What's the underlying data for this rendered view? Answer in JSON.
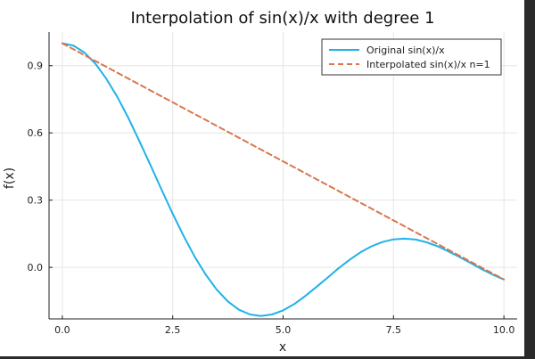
{
  "chart_data": {
    "type": "line",
    "title": "Interpolation of sin(x)/x with degree 1",
    "xlabel": "x",
    "ylabel": "f(x)",
    "xlim": [
      -0.3,
      10.3
    ],
    "ylim": [
      -0.23,
      1.05
    ],
    "xticks": [
      0,
      2.5,
      5,
      7.5,
      10
    ],
    "xtick_labels": [
      "0.0",
      "2.5",
      "5.0",
      "7.5",
      "10.0"
    ],
    "yticks": [
      0,
      0.3,
      0.6,
      0.9
    ],
    "ytick_labels": [
      "0.0",
      "0.3",
      "0.6",
      "0.9"
    ],
    "grid": true,
    "legend_position": "top-right",
    "series": [
      {
        "name": "Original sin(x)/x",
        "color": "#1fb2e8",
        "style": "solid",
        "x": [
          0,
          0.25,
          0.5,
          0.75,
          1.0,
          1.25,
          1.5,
          1.75,
          2.0,
          2.25,
          2.5,
          2.75,
          3.0,
          3.25,
          3.5,
          3.75,
          4.0,
          4.25,
          4.5,
          4.75,
          5.0,
          5.25,
          5.5,
          5.75,
          6.0,
          6.25,
          6.5,
          6.75,
          7.0,
          7.25,
          7.5,
          7.75,
          8.0,
          8.25,
          8.5,
          8.75,
          9.0,
          9.25,
          9.5,
          9.75,
          10.0
        ],
        "y": [
          1.0,
          0.99,
          0.959,
          0.909,
          0.841,
          0.759,
          0.665,
          0.562,
          0.455,
          0.346,
          0.239,
          0.139,
          0.047,
          -0.033,
          -0.1,
          -0.152,
          -0.189,
          -0.21,
          -0.217,
          -0.21,
          -0.192,
          -0.164,
          -0.128,
          -0.088,
          -0.047,
          -0.005,
          0.033,
          0.067,
          0.094,
          0.113,
          0.125,
          0.128,
          0.124,
          0.112,
          0.094,
          0.071,
          0.046,
          0.019,
          -0.008,
          -0.033,
          -0.054
        ]
      },
      {
        "name": "Interpolated sin(x)/x n=1",
        "color": "#d9774e",
        "style": "dashed",
        "x": [
          0,
          10
        ],
        "y": [
          1.0,
          -0.054
        ]
      }
    ]
  }
}
